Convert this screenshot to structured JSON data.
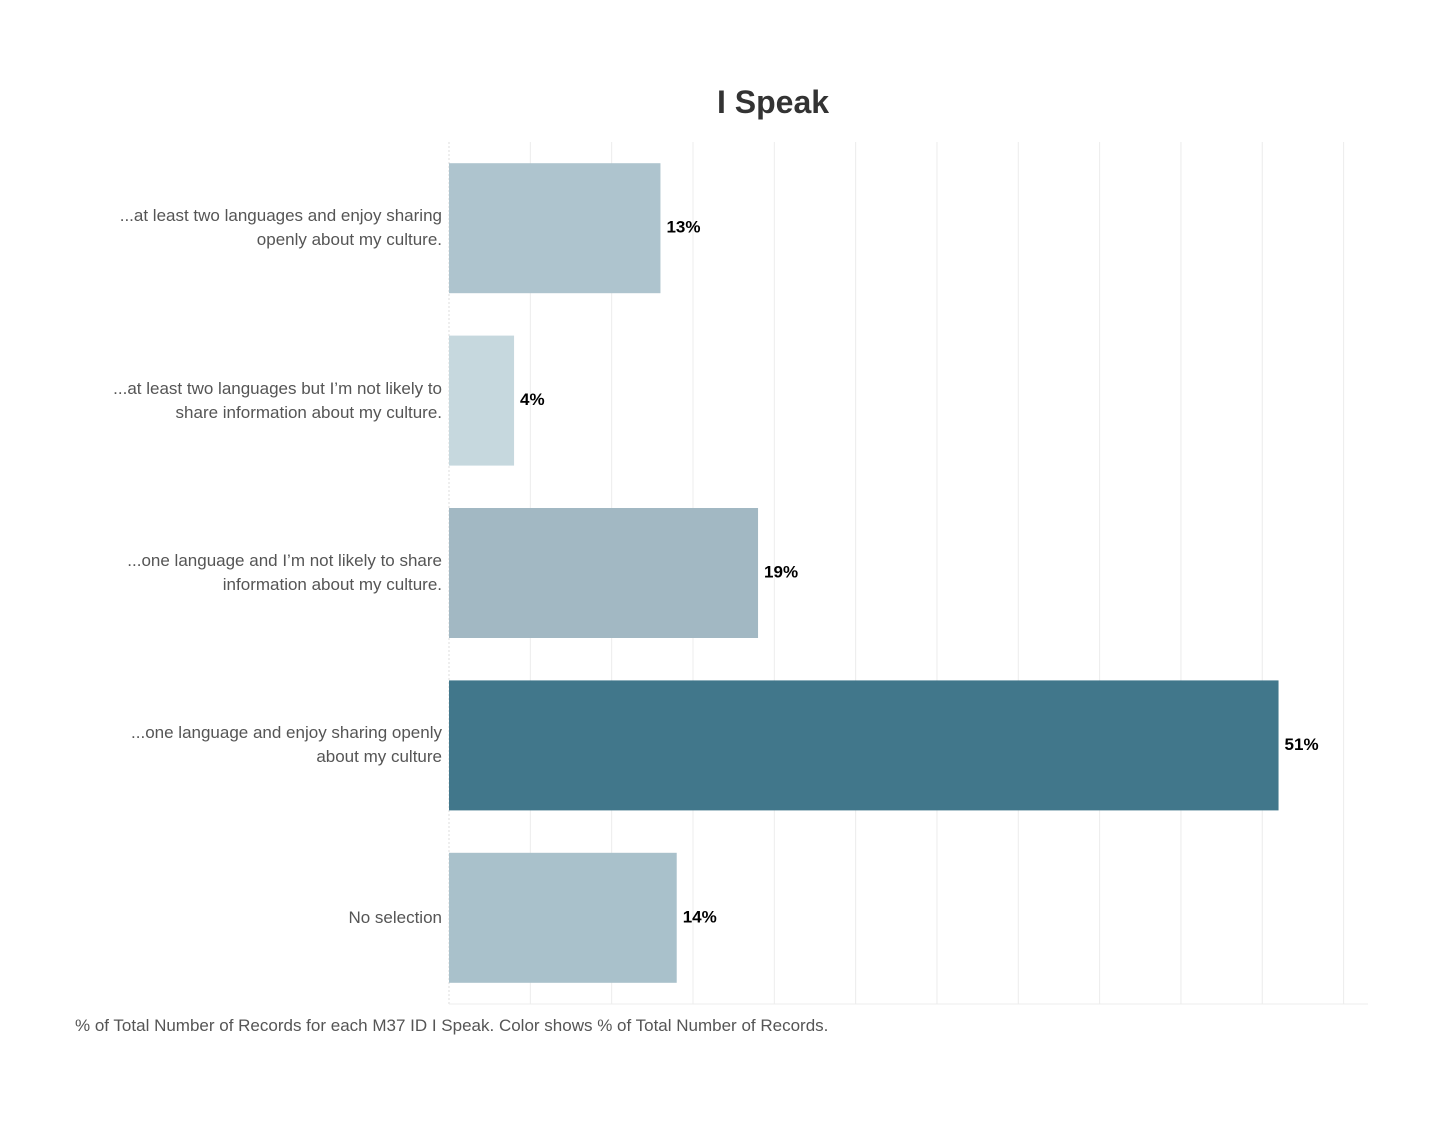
{
  "chart_data": {
    "type": "bar",
    "orientation": "horizontal",
    "title": "I Speak",
    "footnote": "% of Total Number of Records for each M37 ID I Speak.  Color shows % of Total Number of Records.",
    "categories": [
      "...at least two languages and enjoy sharing\nopenly about my culture.",
      "...at least two languages but I’m not likely to\nshare information about my culture.",
      "...one language and I’m not likely to share\ninformation about my culture.",
      "...one language and enjoy sharing openly\nabout my culture",
      "No selection"
    ],
    "values": [
      13,
      4,
      19,
      51,
      14
    ],
    "value_labels": [
      "13%",
      "4%",
      "19%",
      "51%",
      "14%"
    ],
    "colors": [
      "#aec4ce",
      "#c6d8de",
      "#a2b8c3",
      "#41778b",
      "#a9c1cb"
    ],
    "xlim": [
      0,
      56.5
    ],
    "xticks": [
      0,
      5,
      10,
      15,
      20,
      25,
      30,
      35,
      40,
      45,
      50,
      55
    ],
    "grid": true
  }
}
